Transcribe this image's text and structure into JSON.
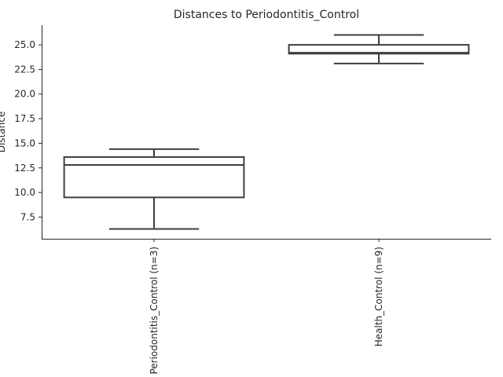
{
  "chart_data": {
    "type": "box",
    "title": "Distances to Periodontitis_Control",
    "xlabel": "",
    "ylabel": "Distance",
    "ylim": [
      5.3,
      27.0
    ],
    "yticks": [
      7.5,
      10.0,
      12.5,
      15.0,
      17.5,
      20.0,
      22.5,
      25.0
    ],
    "ytick_labels": [
      "7.5",
      "10.0",
      "12.5",
      "15.0",
      "17.5",
      "20.0",
      "22.5",
      "25.0"
    ],
    "grid": false,
    "categories": [
      "Periodontitis_Control (n=3)",
      "Health_Control (n=9)"
    ],
    "boxes": [
      {
        "category": "Periodontitis_Control (n=3)",
        "whisker_low": 6.3,
        "q1": 9.5,
        "median": 12.8,
        "q3": 13.6,
        "whisker_high": 14.4
      },
      {
        "category": "Health_Control (n=9)",
        "whisker_low": 23.1,
        "q1": 24.1,
        "median": 24.2,
        "q3": 25.0,
        "whisker_high": 26.0
      }
    ],
    "colors": {
      "box_edge": "#3f3f3f",
      "box_fill": "#ffffff",
      "axis": "#262626"
    }
  }
}
